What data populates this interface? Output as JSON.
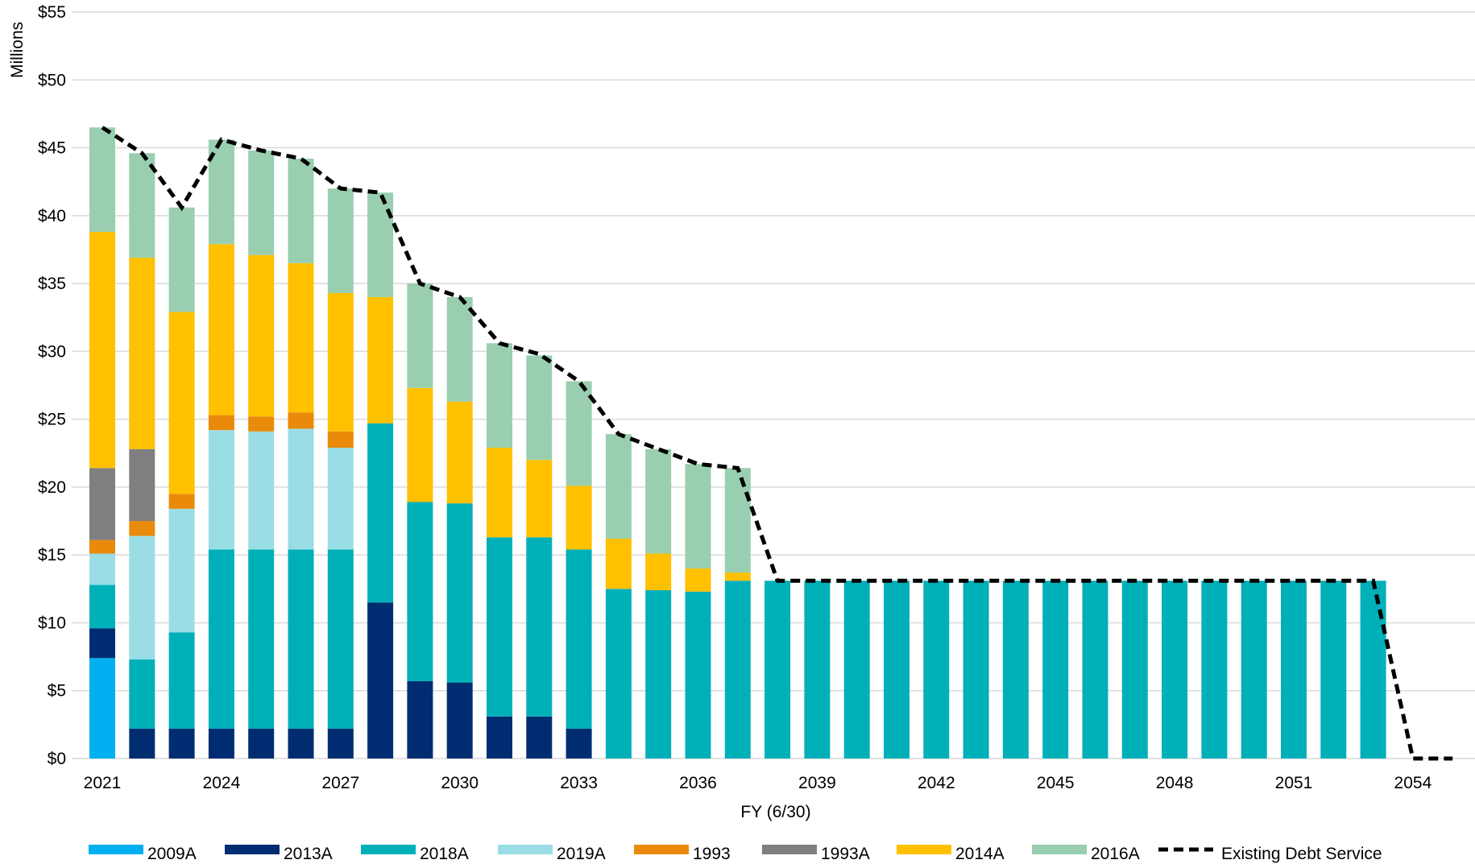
{
  "chart_data": {
    "type": "bar",
    "stacked": true,
    "title": "",
    "xlabel": "FY (6/30)",
    "ylabel": "Millions",
    "ylim": [
      0,
      55
    ],
    "y_ticks": [
      0,
      5,
      10,
      15,
      20,
      25,
      30,
      35,
      40,
      45,
      50,
      55
    ],
    "y_tick_labels": [
      "$0",
      "$5",
      "$10",
      "$15",
      "$20",
      "$25",
      "$30",
      "$35",
      "$40",
      "$45",
      "$50",
      "$55"
    ],
    "x_ticks": [
      2021,
      2024,
      2027,
      2030,
      2033,
      2036,
      2039,
      2042,
      2045,
      2048,
      2051,
      2054
    ],
    "x_tick_labels": [
      "2021",
      "2024",
      "2027",
      "2030",
      "2033",
      "2036",
      "2039",
      "2042",
      "2045",
      "2048",
      "2051",
      "2054"
    ],
    "grid": "horizontal",
    "legend_position": "bottom",
    "categories": [
      2021,
      2022,
      2023,
      2024,
      2025,
      2026,
      2027,
      2028,
      2029,
      2030,
      2031,
      2032,
      2033,
      2034,
      2035,
      2036,
      2037,
      2038,
      2039,
      2040,
      2041,
      2042,
      2043,
      2044,
      2045,
      2046,
      2047,
      2048,
      2049,
      2050,
      2051,
      2052,
      2053,
      2054,
      2055
    ],
    "series": [
      {
        "name": "2009A",
        "color": "#00B0F0",
        "values": [
          7.4,
          0,
          0,
          0,
          0,
          0,
          0,
          0,
          0,
          0,
          0,
          0,
          0,
          0,
          0,
          0,
          0,
          0,
          0,
          0,
          0,
          0,
          0,
          0,
          0,
          0,
          0,
          0,
          0,
          0,
          0,
          0,
          0,
          0,
          0
        ]
      },
      {
        "name": "2013A",
        "color": "#002D72",
        "values": [
          2.2,
          2.2,
          2.2,
          2.2,
          2.2,
          2.2,
          2.2,
          11.5,
          5.7,
          5.6,
          3.1,
          3.1,
          2.2,
          0,
          0,
          0,
          0,
          0,
          0,
          0,
          0,
          0,
          0,
          0,
          0,
          0,
          0,
          0,
          0,
          0,
          0,
          0,
          0,
          0,
          0
        ]
      },
      {
        "name": "2018A",
        "color": "#00B0B9",
        "values": [
          3.2,
          5.1,
          7.1,
          13.2,
          13.2,
          13.2,
          13.2,
          13.2,
          13.2,
          13.2,
          13.2,
          13.2,
          13.2,
          12.5,
          12.4,
          12.3,
          13.1,
          13.1,
          13.1,
          13.1,
          13.1,
          13.1,
          13.1,
          13.1,
          13.1,
          13.1,
          13.1,
          13.1,
          13.1,
          13.1,
          13.1,
          13.1,
          13.1,
          0,
          0
        ]
      },
      {
        "name": "2019A",
        "color": "#9ADDE5",
        "values": [
          2.3,
          9.1,
          9.1,
          8.8,
          8.7,
          8.9,
          7.5,
          0,
          0,
          0,
          0,
          0,
          0,
          0,
          0,
          0,
          0,
          0,
          0,
          0,
          0,
          0,
          0,
          0,
          0,
          0,
          0,
          0,
          0,
          0,
          0,
          0,
          0,
          0,
          0
        ]
      },
      {
        "name": "1993",
        "color": "#EA8A0A",
        "values": [
          1.0,
          1.1,
          1.1,
          1.1,
          1.1,
          1.2,
          1.2,
          0,
          0,
          0,
          0,
          0,
          0,
          0,
          0,
          0,
          0,
          0,
          0,
          0,
          0,
          0,
          0,
          0,
          0,
          0,
          0,
          0,
          0,
          0,
          0,
          0,
          0,
          0,
          0
        ]
      },
      {
        "name": "1993A",
        "color": "#7F7F7F",
        "values": [
          5.3,
          5.3,
          0,
          0,
          0,
          0,
          0,
          0,
          0,
          0,
          0,
          0,
          0,
          0,
          0,
          0,
          0,
          0,
          0,
          0,
          0,
          0,
          0,
          0,
          0,
          0,
          0,
          0,
          0,
          0,
          0,
          0,
          0,
          0,
          0
        ]
      },
      {
        "name": "2014A",
        "color": "#FFC000",
        "values": [
          17.4,
          14.1,
          13.4,
          12.6,
          11.9,
          11.0,
          10.2,
          9.3,
          8.4,
          7.5,
          6.6,
          5.7,
          4.7,
          3.7,
          2.7,
          1.7,
          0.6,
          0,
          0,
          0,
          0,
          0,
          0,
          0,
          0,
          0,
          0,
          0,
          0,
          0,
          0,
          0,
          0,
          0,
          0
        ]
      },
      {
        "name": "2016A",
        "color": "#99CFB0",
        "values": [
          7.7,
          7.7,
          7.7,
          7.7,
          7.7,
          7.7,
          7.7,
          7.7,
          7.7,
          7.7,
          7.7,
          7.7,
          7.7,
          7.7,
          7.7,
          7.7,
          7.7,
          0,
          0,
          0,
          0,
          0,
          0,
          0,
          0,
          0,
          0,
          0,
          0,
          0,
          0,
          0,
          0,
          0,
          0
        ]
      }
    ],
    "line_series": {
      "name": "Existing Debt Service",
      "color": "#000000",
      "style": "dashed",
      "values": [
        46.5,
        44.6,
        40.6,
        45.6,
        44.8,
        44.2,
        42.0,
        41.7,
        35.0,
        34.0,
        30.6,
        29.8,
        27.8,
        23.9,
        22.8,
        21.7,
        21.4,
        13.1,
        13.1,
        13.1,
        13.1,
        13.1,
        13.1,
        13.1,
        13.1,
        13.1,
        13.1,
        13.1,
        13.1,
        13.1,
        13.1,
        13.1,
        13.1,
        0,
        0
      ]
    }
  }
}
